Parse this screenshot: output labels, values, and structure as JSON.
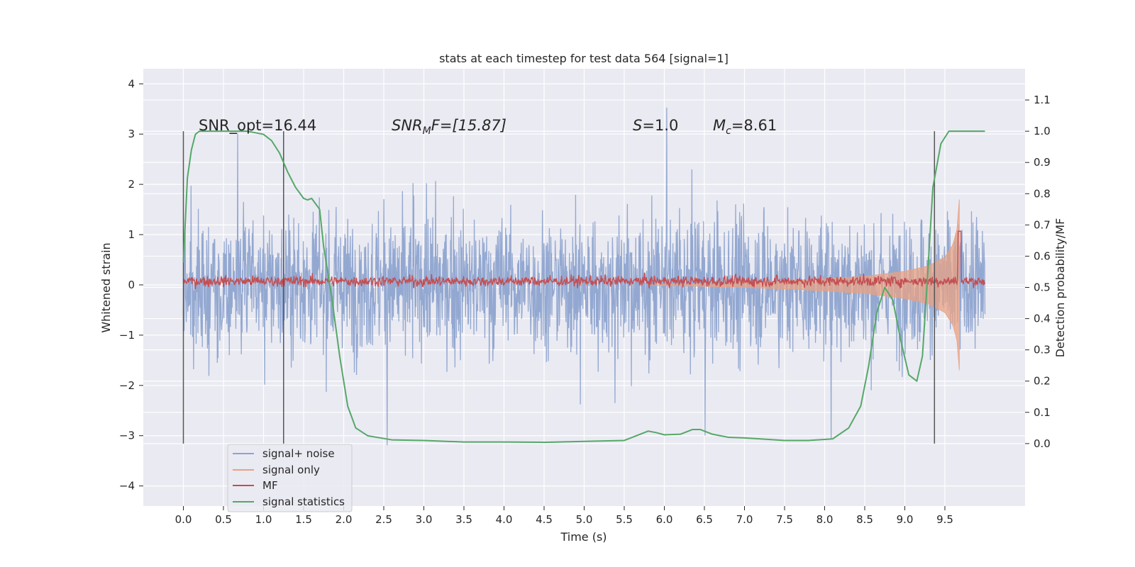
{
  "chart_data": {
    "type": "line",
    "title": "stats at each timestep for test data 564 [signal=1]",
    "xlabel": "Time (s)",
    "ylabel": "Whitened strain",
    "ylabel_right": "Detection probability/MF",
    "xlim": [
      -0.5,
      10.5
    ],
    "ylim": [
      -4.4,
      4.3
    ],
    "ylim_right": [
      -0.2,
      1.2
    ],
    "x_ticks": [
      "0.0",
      "0.5",
      "1.0",
      "1.5",
      "2.0",
      "2.5",
      "3.0",
      "3.5",
      "4.0",
      "4.5",
      "5.0",
      "5.5",
      "6.0",
      "6.5",
      "7.0",
      "7.5",
      "8.0",
      "8.5",
      "9.0",
      "9.5"
    ],
    "y_ticks": [
      "4",
      "3",
      "2",
      "1",
      "0",
      "−1",
      "−2",
      "−3",
      "−4"
    ],
    "y_ticks_right": [
      "1.1",
      "1.0",
      "0.9",
      "0.8",
      "0.7",
      "0.6",
      "0.5",
      "0.4",
      "0.3",
      "0.2",
      "0.1",
      "0.0"
    ],
    "grid": true,
    "legend_position": "lower-left",
    "annotations": {
      "snr_opt": "SNR_opt=16.44",
      "snr_mf_base": "SNR",
      "snr_mf_sub": "M",
      "snr_mf_rest": "F=[15.87]",
      "s_italic": "S",
      "s_rest": "=1.0",
      "mc_italic": "M",
      "mc_sub": "c",
      "mc_rest": "=8.61"
    },
    "vertical_markers_x": [
      0.0,
      1.25,
      9.37
    ],
    "series": [
      {
        "name": "signal+ noise",
        "color": "#8ea4cf",
        "noise_amplitude": 0.95,
        "x_range": [
          0.0,
          10.0
        ],
        "samples": 2200
      },
      {
        "name": "signal only",
        "color": "#e8a183",
        "envelope_x": [
          7.0,
          7.5,
          8.0,
          8.5,
          9.0,
          9.3,
          9.5,
          9.6,
          9.65,
          9.68
        ],
        "envelope_y": [
          0.05,
          0.08,
          0.12,
          0.17,
          0.27,
          0.38,
          0.55,
          0.8,
          1.1,
          1.7
        ]
      },
      {
        "name": "MF",
        "color": "#c44e52",
        "baseline_right": 0.52,
        "noise_amplitude_right": 0.012,
        "peak_x": 9.68,
        "peak_right": 0.68
      },
      {
        "name": "signal statistics",
        "color": "#55a868",
        "x": [
          0.0,
          0.05,
          0.1,
          0.15,
          0.2,
          0.3,
          0.5,
          0.8,
          1.0,
          1.1,
          1.2,
          1.3,
          1.4,
          1.5,
          1.55,
          1.6,
          1.7,
          1.75,
          1.85,
          1.95,
          2.05,
          2.15,
          2.3,
          2.6,
          3.0,
          3.5,
          4.0,
          4.5,
          5.0,
          5.5,
          5.65,
          5.8,
          5.9,
          6.0,
          6.2,
          6.35,
          6.45,
          6.6,
          6.8,
          7.0,
          7.2,
          7.5,
          7.8,
          8.1,
          8.3,
          8.45,
          8.55,
          8.65,
          8.75,
          8.85,
          8.95,
          9.05,
          9.15,
          9.22,
          9.28,
          9.35,
          9.45,
          9.55,
          9.7,
          10.0
        ],
        "values": [
          0.58,
          0.85,
          0.94,
          0.99,
          1.0,
          1.0,
          1.0,
          1.0,
          0.99,
          0.97,
          0.93,
          0.87,
          0.82,
          0.785,
          0.78,
          0.785,
          0.75,
          0.63,
          0.47,
          0.28,
          0.12,
          0.05,
          0.025,
          0.012,
          0.01,
          0.005,
          0.005,
          0.004,
          0.007,
          0.01,
          0.025,
          0.04,
          0.035,
          0.028,
          0.03,
          0.045,
          0.045,
          0.03,
          0.02,
          0.018,
          0.015,
          0.01,
          0.01,
          0.015,
          0.05,
          0.12,
          0.25,
          0.42,
          0.5,
          0.46,
          0.33,
          0.22,
          0.2,
          0.28,
          0.52,
          0.82,
          0.96,
          1.0,
          1.0,
          1.0
        ]
      }
    ]
  }
}
